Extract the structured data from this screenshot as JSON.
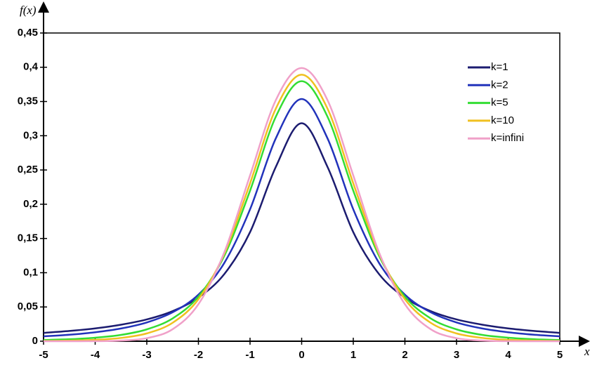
{
  "chart_data": {
    "type": "line",
    "x_label": "x",
    "y_label": "f(x)",
    "x": [
      -5,
      -4.5,
      -4,
      -3.5,
      -3,
      -2.5,
      -2,
      -1.5,
      -1,
      -0.5,
      0,
      0.5,
      1,
      1.5,
      2,
      2.5,
      3,
      3.5,
      4,
      4.5,
      5
    ],
    "series": [
      {
        "name": "k=1",
        "color": "#1c1c70",
        "values": [
          0.0122,
          0.015,
          0.0187,
          0.0241,
          0.0318,
          0.0439,
          0.0637,
          0.0979,
          0.1592,
          0.2546,
          0.3183,
          0.2546,
          0.1592,
          0.0979,
          0.0637,
          0.0439,
          0.0318,
          0.0241,
          0.0187,
          0.015,
          0.0122
        ]
      },
      {
        "name": "k=2",
        "color": "#2233bb",
        "values": [
          0.0071,
          0.0095,
          0.0131,
          0.0186,
          0.0274,
          0.0422,
          0.068,
          0.1141,
          0.1925,
          0.2963,
          0.3536,
          0.2963,
          0.1925,
          0.1141,
          0.068,
          0.0422,
          0.0274,
          0.0186,
          0.0131,
          0.0095,
          0.0071
        ]
      },
      {
        "name": "k=5",
        "color": "#33dd33",
        "values": [
          0.0018,
          0.0029,
          0.0051,
          0.0092,
          0.0173,
          0.0333,
          0.0651,
          0.1245,
          0.2197,
          0.3279,
          0.3796,
          0.3279,
          0.2197,
          0.1245,
          0.0651,
          0.0333,
          0.0173,
          0.0092,
          0.0051,
          0.0029,
          0.0018
        ]
      },
      {
        "name": "k=10",
        "color": "#f0c020",
        "values": [
          0.0004,
          0.0009,
          0.002,
          0.0048,
          0.0114,
          0.0269,
          0.0612,
          0.1275,
          0.2304,
          0.3397,
          0.3891,
          0.3397,
          0.2304,
          0.1275,
          0.0612,
          0.0269,
          0.0114,
          0.0048,
          0.002,
          0.0009,
          0.0004
        ]
      },
      {
        "name": "k=infini",
        "color": "#f0a0c8",
        "values": [
          0.0,
          0.0,
          0.0001,
          0.0009,
          0.0044,
          0.0175,
          0.054,
          0.1295,
          0.242,
          0.3521,
          0.3989,
          0.3521,
          0.242,
          0.1295,
          0.054,
          0.0175,
          0.0044,
          0.0009,
          0.0001,
          0.0,
          0.0
        ]
      }
    ],
    "xlim": [
      -5,
      5
    ],
    "xticks": [
      -5,
      -4,
      -3,
      -2,
      -1,
      0,
      1,
      2,
      3,
      4,
      5
    ],
    "ylim": [
      0,
      0.45
    ],
    "yticks": [
      0,
      {
        "value": 0.05,
        "label": "0,05"
      },
      {
        "value": 0.1,
        "label": "0,1"
      },
      {
        "value": 0.15,
        "label": "0,15"
      },
      {
        "value": 0.2,
        "label": "0,2"
      },
      {
        "value": 0.25,
        "label": "0,25"
      },
      {
        "value": 0.3,
        "label": "0,3"
      },
      {
        "value": 0.35,
        "label": "0,35"
      },
      {
        "value": 0.4,
        "label": "0,4"
      },
      {
        "value": 0.45,
        "label": "0,45"
      }
    ],
    "legend": "top-right",
    "grid": false
  }
}
